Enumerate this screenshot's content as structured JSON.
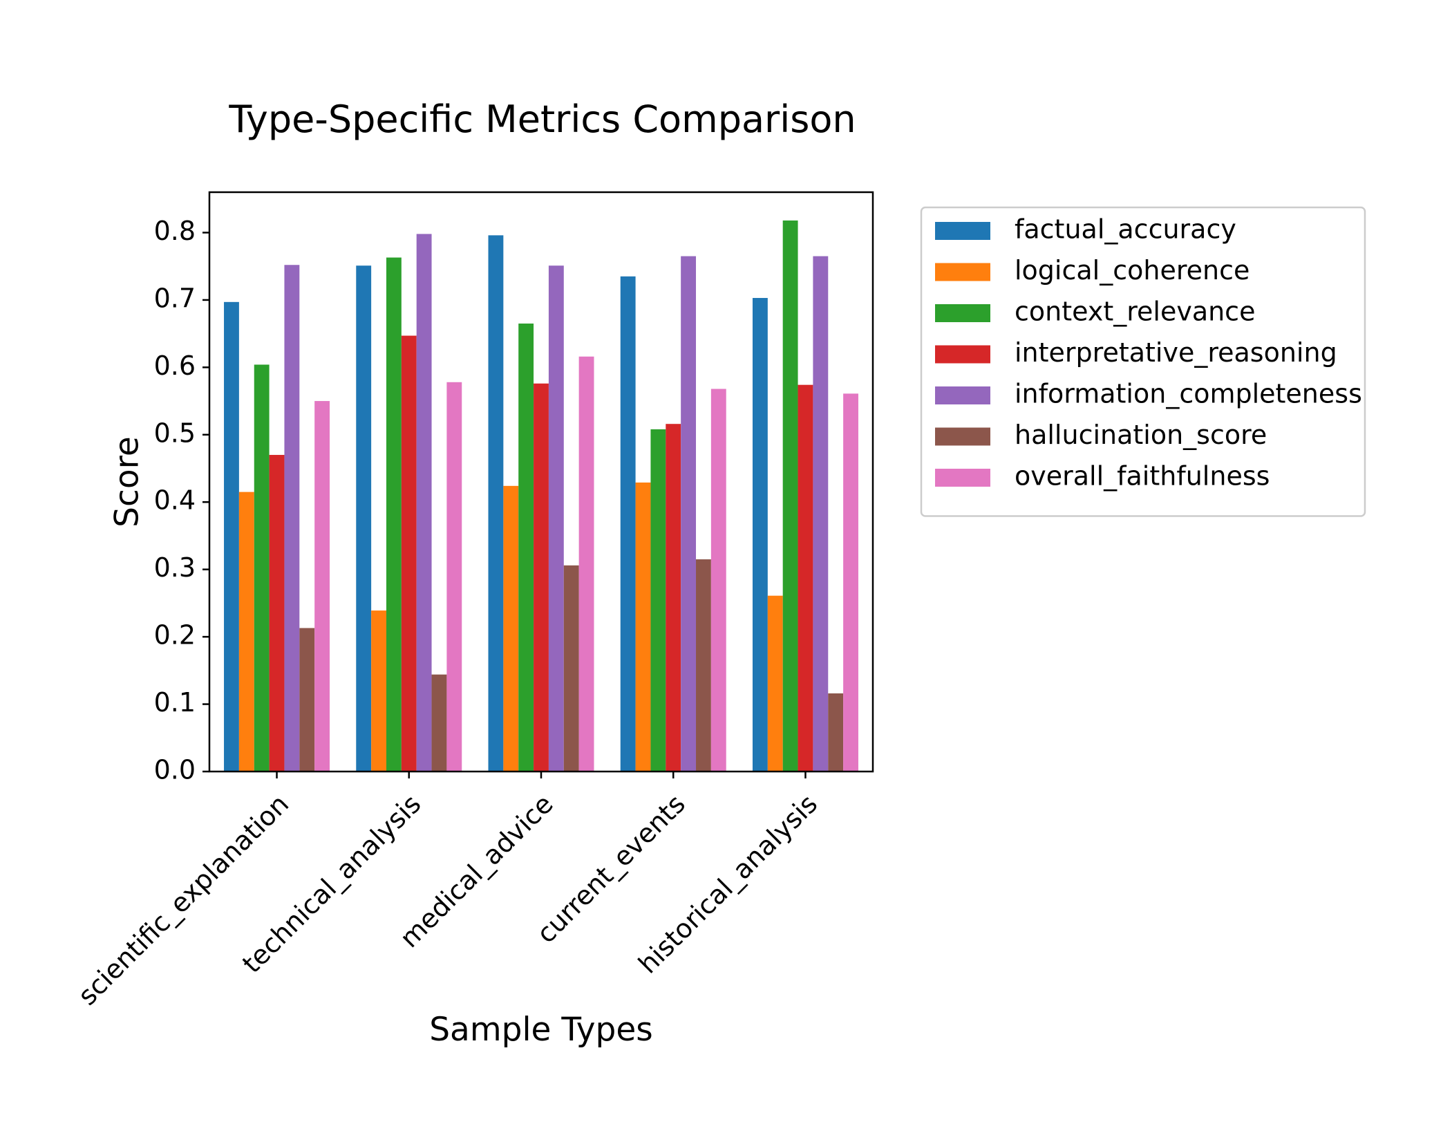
{
  "chart_data": {
    "type": "bar",
    "title": "Type-Specific Metrics Comparison",
    "xlabel": "Sample Types",
    "ylabel": "Score",
    "ylim": [
      0,
      0.86
    ],
    "yticks": [
      "0.0",
      "0.1",
      "0.2",
      "0.3",
      "0.4",
      "0.5",
      "0.6",
      "0.7",
      "0.8"
    ],
    "grid": false,
    "legend_position": "outside-right-top",
    "categories": [
      "scientific_explanation",
      "technical_analysis",
      "medical_advice",
      "current_events",
      "historical_analysis"
    ],
    "series": [
      {
        "name": "factual_accuracy",
        "color": "#1f77b4",
        "values": [
          0.697,
          0.751,
          0.796,
          0.735,
          0.703
        ]
      },
      {
        "name": "logical_coherence",
        "color": "#ff7f0e",
        "values": [
          0.415,
          0.239,
          0.424,
          0.429,
          0.261
        ]
      },
      {
        "name": "context_relevance",
        "color": "#2ca02c",
        "values": [
          0.604,
          0.763,
          0.665,
          0.508,
          0.818
        ]
      },
      {
        "name": "interpretative_reasoning",
        "color": "#d62728",
        "values": [
          0.47,
          0.647,
          0.576,
          0.516,
          0.574
        ]
      },
      {
        "name": "information_completeness",
        "color": "#9467bd",
        "values": [
          0.752,
          0.798,
          0.751,
          0.765,
          0.765
        ]
      },
      {
        "name": "hallucination_score",
        "color": "#8c564b",
        "values": [
          0.213,
          0.144,
          0.306,
          0.315,
          0.116
        ]
      },
      {
        "name": "overall_faithfulness",
        "color": "#e377c2",
        "values": [
          0.55,
          0.578,
          0.616,
          0.568,
          0.561
        ]
      }
    ]
  }
}
